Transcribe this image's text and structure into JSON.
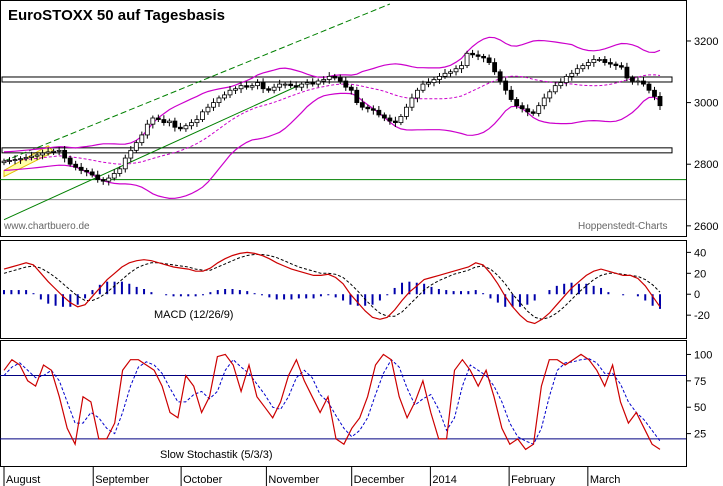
{
  "title": "EuroSTOXX 50 auf Tagesbasis",
  "watermark_left": "www.chartbuero.de",
  "watermark_right": "Hoppenstedt-Charts",
  "macd_label": "MACD (12/26/9)",
  "stoch_label": "Slow Stochastik (5/3/3)",
  "colors": {
    "bollinger": "#cc00cc",
    "mid_band": "#cc00cc",
    "trend_green": "#008000",
    "macd_line": "#cc0000",
    "signal_line": "#000000",
    "histogram": "#0000aa",
    "stoch_k": "#cc0000",
    "stoch_d": "#0000cc",
    "hline": "#000080",
    "highlight": "#ffffaa"
  },
  "chart_data": [
    {
      "type": "candlestick",
      "title": "EuroSTOXX 50 auf Tagesbasis",
      "y_ticks": [
        "2600",
        "2800",
        "3000",
        "3200"
      ],
      "ylim": [
        2580,
        3320
      ],
      "months": [
        "August",
        "September",
        "October",
        "November",
        "December",
        "2014",
        "February",
        "March"
      ],
      "close": [
        2810,
        2812,
        2815,
        2818,
        2822,
        2826,
        2830,
        2836,
        2840,
        2842,
        2845,
        2820,
        2800,
        2790,
        2780,
        2775,
        2765,
        2750,
        2745,
        2755,
        2770,
        2785,
        2820,
        2845,
        2870,
        2895,
        2930,
        2950,
        2945,
        2935,
        2940,
        2920,
        2915,
        2925,
        2935,
        2945,
        2970,
        2985,
        3000,
        3015,
        3025,
        3040,
        3045,
        3055,
        3050,
        3055,
        3065,
        3045,
        3040,
        3050,
        3060,
        3060,
        3055,
        3050,
        3060,
        3065,
        3060,
        3070,
        3075,
        3085,
        3080,
        3070,
        3050,
        3040,
        3000,
        2985,
        2980,
        2975,
        2960,
        2950,
        2940,
        2935,
        2955,
        2985,
        3015,
        3040,
        3060,
        3065,
        3075,
        3085,
        3095,
        3100,
        3110,
        3120,
        3160,
        3155,
        3150,
        3145,
        3130,
        3100,
        3070,
        3040,
        3010,
        2990,
        2980,
        2970,
        2965,
        2990,
        3015,
        3035,
        3055,
        3065,
        3085,
        3095,
        3110,
        3120,
        3130,
        3140,
        3140,
        3130,
        3125,
        3120,
        3115,
        3080,
        3070,
        3070,
        3060,
        3040,
        3020,
        2990
      ],
      "support_lines": [
        2845,
        3075
      ],
      "green_hline": 2750
    },
    {
      "type": "line",
      "title": "MACD (12/26/9)",
      "y_ticks": [
        "-20",
        "0",
        "20",
        "40"
      ],
      "ylim": [
        -38,
        48
      ],
      "series": [
        {
          "name": "MACD",
          "values": [
            24,
            26,
            28,
            30,
            28,
            20,
            12,
            5,
            -2,
            -8,
            -12,
            -10,
            -2,
            6,
            14,
            20,
            26,
            30,
            32,
            33,
            32,
            30,
            28,
            26,
            25,
            24,
            22,
            22,
            25,
            30,
            34,
            37,
            39,
            40,
            39,
            37,
            34,
            30,
            27,
            24,
            22,
            20,
            18,
            18,
            19,
            16,
            10,
            0,
            -8,
            -16,
            -22,
            -24,
            -22,
            -15,
            -6,
            2,
            8,
            14,
            16,
            18,
            20,
            22,
            24,
            26,
            30,
            28,
            20,
            10,
            -2,
            -12,
            -20,
            -26,
            -28,
            -24,
            -18,
            -10,
            -2,
            6,
            12,
            18,
            22,
            24,
            22,
            20,
            18,
            18,
            15,
            8,
            -2,
            -12
          ]
        },
        {
          "name": "Signal",
          "values": [
            20,
            22,
            24,
            26,
            27,
            25,
            21,
            16,
            10,
            4,
            -2,
            -6,
            -6,
            -3,
            2,
            8,
            14,
            20,
            25,
            28,
            30,
            30,
            29,
            28,
            27,
            26,
            24,
            23,
            23,
            26,
            29,
            32,
            35,
            37,
            38,
            38,
            37,
            35,
            32,
            29,
            26,
            24,
            22,
            20,
            20,
            19,
            16,
            10,
            3,
            -5,
            -12,
            -18,
            -21,
            -21,
            -17,
            -10,
            -3,
            4,
            9,
            13,
            16,
            19,
            21,
            23,
            26,
            27,
            24,
            18,
            10,
            0,
            -8,
            -16,
            -22,
            -24,
            -22,
            -18,
            -12,
            -5,
            2,
            8,
            14,
            18,
            20,
            20,
            19,
            18,
            17,
            14,
            9,
            2
          ]
        },
        {
          "name": "Histogram",
          "values": [
            4,
            4,
            4,
            4,
            1,
            -5,
            -9,
            -11,
            -12,
            -12,
            -10,
            -4,
            4,
            9,
            12,
            12,
            12,
            10,
            7,
            5,
            2,
            0,
            -1,
            -2,
            -2,
            -2,
            -2,
            -1,
            2,
            4,
            5,
            5,
            4,
            3,
            1,
            -1,
            -3,
            -5,
            -5,
            -5,
            -4,
            -4,
            -4,
            -2,
            -1,
            -3,
            -6,
            -10,
            -11,
            -11,
            -10,
            -6,
            -1,
            6,
            11,
            12,
            11,
            10,
            7,
            5,
            4,
            3,
            3,
            3,
            4,
            1,
            -4,
            -8,
            -12,
            -12,
            -12,
            -10,
            -6,
            0,
            4,
            8,
            10,
            11,
            10,
            10,
            8,
            6,
            2,
            0,
            -1,
            0,
            -2,
            -6,
            -11,
            -14
          ]
        }
      ]
    },
    {
      "type": "line",
      "title": "Slow Stochastik (5/3/3)",
      "y_ticks": [
        "25",
        "50",
        "75",
        "100"
      ],
      "ylim": [
        0,
        108
      ],
      "hlines": [
        80,
        20
      ],
      "series": [
        {
          "name": "%K",
          "values": [
            85,
            95,
            90,
            75,
            70,
            90,
            85,
            60,
            30,
            15,
            60,
            55,
            20,
            20,
            35,
            85,
            95,
            95,
            90,
            85,
            70,
            45,
            40,
            80,
            70,
            45,
            60,
            98,
            100,
            90,
            65,
            90,
            60,
            50,
            40,
            55,
            80,
            95,
            75,
            60,
            45,
            60,
            20,
            15,
            30,
            40,
            60,
            90,
            100,
            95,
            60,
            40,
            55,
            75,
            45,
            20,
            20,
            85,
            95,
            85,
            70,
            85,
            60,
            30,
            15,
            20,
            10,
            15,
            70,
            95,
            95,
            90,
            95,
            100,
            95,
            85,
            70,
            90,
            55,
            35,
            45,
            30,
            15,
            10
          ]
        },
        {
          "name": "%D",
          "values": [
            80,
            88,
            92,
            85,
            78,
            80,
            85,
            75,
            55,
            35,
            35,
            45,
            40,
            30,
            25,
            45,
            70,
            88,
            93,
            90,
            82,
            68,
            55,
            55,
            62,
            65,
            58,
            65,
            85,
            95,
            88,
            82,
            72,
            62,
            50,
            48,
            60,
            78,
            85,
            78,
            62,
            55,
            42,
            30,
            22,
            28,
            40,
            62,
            82,
            95,
            88,
            68,
            52,
            58,
            62,
            48,
            28,
            40,
            70,
            90,
            85,
            80,
            70,
            55,
            35,
            22,
            18,
            15,
            30,
            60,
            85,
            92,
            93,
            95,
            96,
            92,
            82,
            82,
            72,
            55,
            45,
            38,
            28,
            18
          ]
        }
      ]
    }
  ]
}
